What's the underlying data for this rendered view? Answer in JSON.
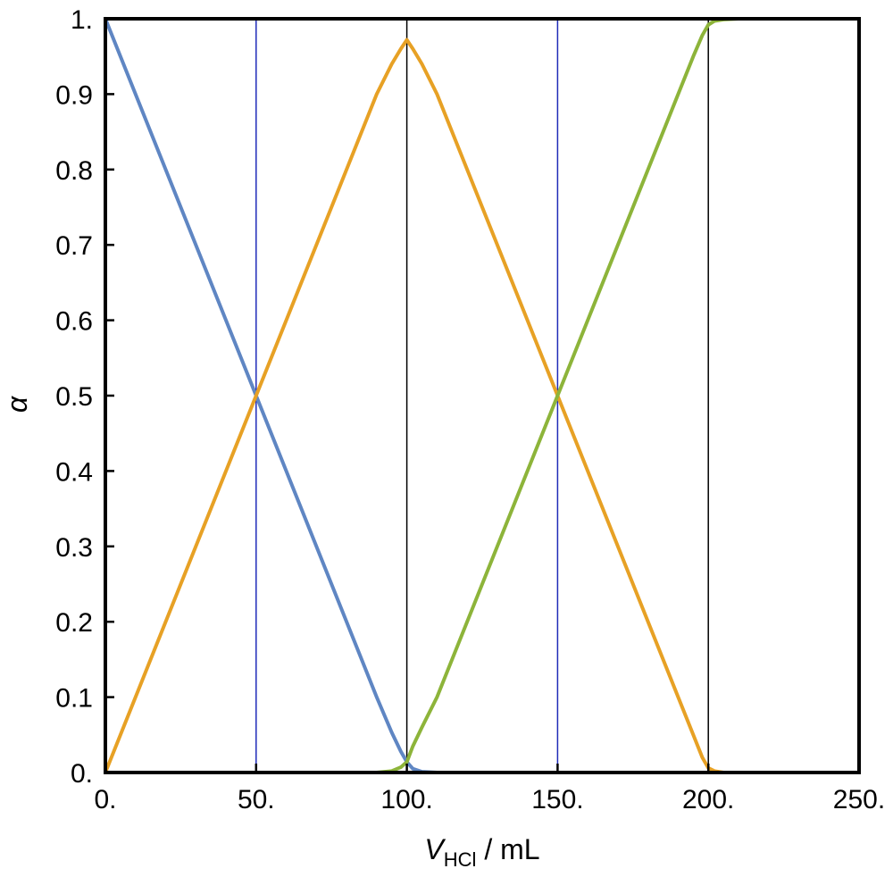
{
  "chart_data": {
    "type": "line",
    "title": "",
    "xlabel": {
      "symbol": "V",
      "subscript": "HCl",
      "unit": " / mL"
    },
    "ylabel": "α",
    "xlim": [
      0,
      250
    ],
    "ylim": [
      0,
      1
    ],
    "x_ticks": [
      0,
      50,
      100,
      150,
      200,
      250
    ],
    "x_tick_labels": [
      "0.",
      "50.",
      "100.",
      "150.",
      "200.",
      "250."
    ],
    "y_ticks": [
      0,
      0.1,
      0.2,
      0.3,
      0.4,
      0.5,
      0.6,
      0.7,
      0.8,
      0.9,
      1.0
    ],
    "y_tick_labels": [
      "0.",
      "0.1",
      "0.2",
      "0.3",
      "0.4",
      "0.5",
      "0.6",
      "0.7",
      "0.8",
      "0.9",
      "1."
    ],
    "grid": false,
    "reference_lines": [
      {
        "x": 50,
        "color": "#1f2bb8"
      },
      {
        "x": 100,
        "color": "#000000"
      },
      {
        "x": 150,
        "color": "#1f2bb8"
      },
      {
        "x": 200,
        "color": "#000000"
      }
    ],
    "series": [
      {
        "color": "#5f86c3",
        "x": [
          0,
          50,
          90,
          95,
          98,
          100,
          102,
          105,
          110,
          250
        ],
        "y": [
          1.0,
          0.5,
          0.1,
          0.053,
          0.028,
          0.014,
          0.005,
          0.001,
          0.0,
          0.0
        ]
      },
      {
        "color": "#e7a125",
        "x": [
          0,
          50,
          90,
          95,
          98,
          100,
          102,
          105,
          110,
          150,
          190,
          195,
          198,
          200,
          202,
          205,
          210,
          250
        ],
        "y": [
          0.0,
          0.5,
          0.9,
          0.94,
          0.96,
          0.972,
          0.96,
          0.94,
          0.9,
          0.5,
          0.1,
          0.05,
          0.02,
          0.006,
          0.002,
          0.0,
          0.0,
          0.0
        ]
      },
      {
        "color": "#8db43a",
        "x": [
          0,
          90,
          95,
          98,
          100,
          102,
          105,
          110,
          150,
          190,
          195,
          198,
          200,
          202,
          205,
          210,
          250
        ],
        "y": [
          0.0,
          0.0,
          0.002,
          0.007,
          0.014,
          0.035,
          0.06,
          0.1,
          0.5,
          0.9,
          0.95,
          0.978,
          0.992,
          0.997,
          0.999,
          1.0,
          1.0
        ]
      }
    ]
  }
}
